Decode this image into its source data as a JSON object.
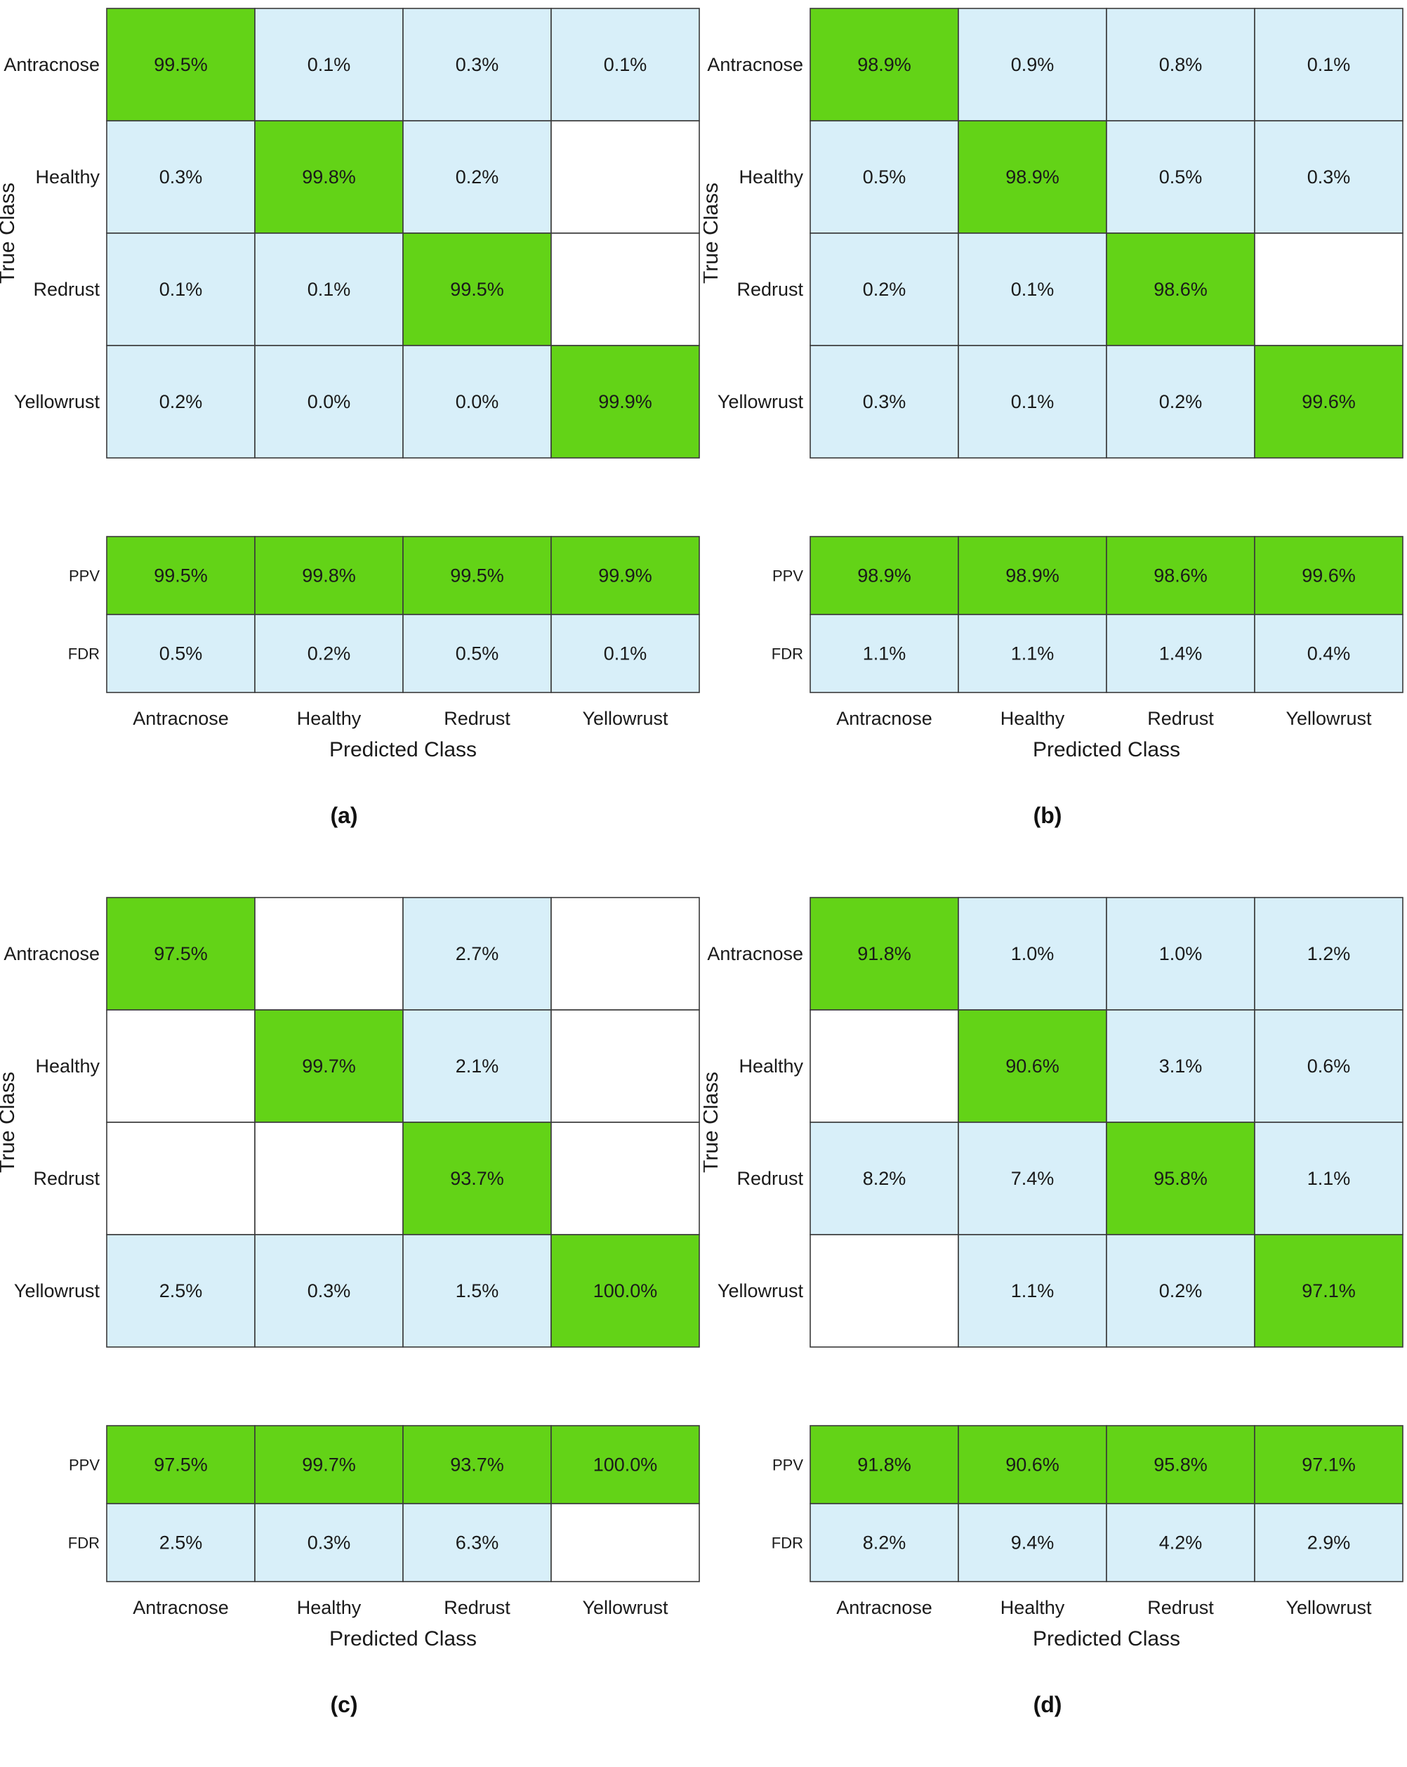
{
  "colors": {
    "diag": "#63d317",
    "off": "#d8eff9",
    "empty": "#ffffff",
    "border": "#3a3a3a"
  },
  "chart_data": [
    {
      "type": "heatmap",
      "panel_label": "(a)",
      "classes": [
        "Antracnose",
        "Healthy",
        "Redrust",
        "Yellowrust"
      ],
      "ylabel": "True Class",
      "xlabel": "Predicted Class",
      "matrix": [
        [
          "99.5%",
          "0.1%",
          "0.3%",
          "0.1%"
        ],
        [
          "0.3%",
          "99.8%",
          "0.2%",
          ""
        ],
        [
          "0.1%",
          "0.1%",
          "99.5%",
          ""
        ],
        [
          "0.2%",
          "0.0%",
          "0.0%",
          "99.9%"
        ]
      ],
      "summary_rows": [
        {
          "label": "PPV",
          "values": [
            "99.5%",
            "99.8%",
            "99.5%",
            "99.9%"
          ]
        },
        {
          "label": "FDR",
          "values": [
            "0.5%",
            "0.2%",
            "0.5%",
            "0.1%"
          ]
        }
      ]
    },
    {
      "type": "heatmap",
      "panel_label": "(b)",
      "classes": [
        "Antracnose",
        "Healthy",
        "Redrust",
        "Yellowrust"
      ],
      "ylabel": "True Class",
      "xlabel": "Predicted Class",
      "matrix": [
        [
          "98.9%",
          "0.9%",
          "0.8%",
          "0.1%"
        ],
        [
          "0.5%",
          "98.9%",
          "0.5%",
          "0.3%"
        ],
        [
          "0.2%",
          "0.1%",
          "98.6%",
          ""
        ],
        [
          "0.3%",
          "0.1%",
          "0.2%",
          "99.6%"
        ]
      ],
      "summary_rows": [
        {
          "label": "PPV",
          "values": [
            "98.9%",
            "98.9%",
            "98.6%",
            "99.6%"
          ]
        },
        {
          "label": "FDR",
          "values": [
            "1.1%",
            "1.1%",
            "1.4%",
            "0.4%"
          ]
        }
      ]
    },
    {
      "type": "heatmap",
      "panel_label": "(c)",
      "classes": [
        "Antracnose",
        "Healthy",
        "Redrust",
        "Yellowrust"
      ],
      "ylabel": "True Class",
      "xlabel": "Predicted Class",
      "matrix": [
        [
          "97.5%",
          "",
          "2.7%",
          ""
        ],
        [
          "",
          "99.7%",
          "2.1%",
          ""
        ],
        [
          "",
          "",
          "93.7%",
          ""
        ],
        [
          "2.5%",
          "0.3%",
          "1.5%",
          "100.0%"
        ]
      ],
      "summary_rows": [
        {
          "label": "PPV",
          "values": [
            "97.5%",
            "99.7%",
            "93.7%",
            "100.0%"
          ]
        },
        {
          "label": "FDR",
          "values": [
            "2.5%",
            "0.3%",
            "6.3%",
            ""
          ]
        }
      ]
    },
    {
      "type": "heatmap",
      "panel_label": "(d)",
      "classes": [
        "Antracnose",
        "Healthy",
        "Redrust",
        "Yellowrust"
      ],
      "ylabel": "True Class",
      "xlabel": "Predicted Class",
      "matrix": [
        [
          "91.8%",
          "1.0%",
          "1.0%",
          "1.2%"
        ],
        [
          "",
          "90.6%",
          "3.1%",
          "0.6%"
        ],
        [
          "8.2%",
          "7.4%",
          "95.8%",
          "1.1%"
        ],
        [
          "",
          "1.1%",
          "0.2%",
          "97.1%"
        ]
      ],
      "summary_rows": [
        {
          "label": "PPV",
          "values": [
            "91.8%",
            "90.6%",
            "95.8%",
            "97.1%"
          ]
        },
        {
          "label": "FDR",
          "values": [
            "8.2%",
            "9.4%",
            "4.2%",
            "2.9%"
          ]
        }
      ]
    }
  ]
}
